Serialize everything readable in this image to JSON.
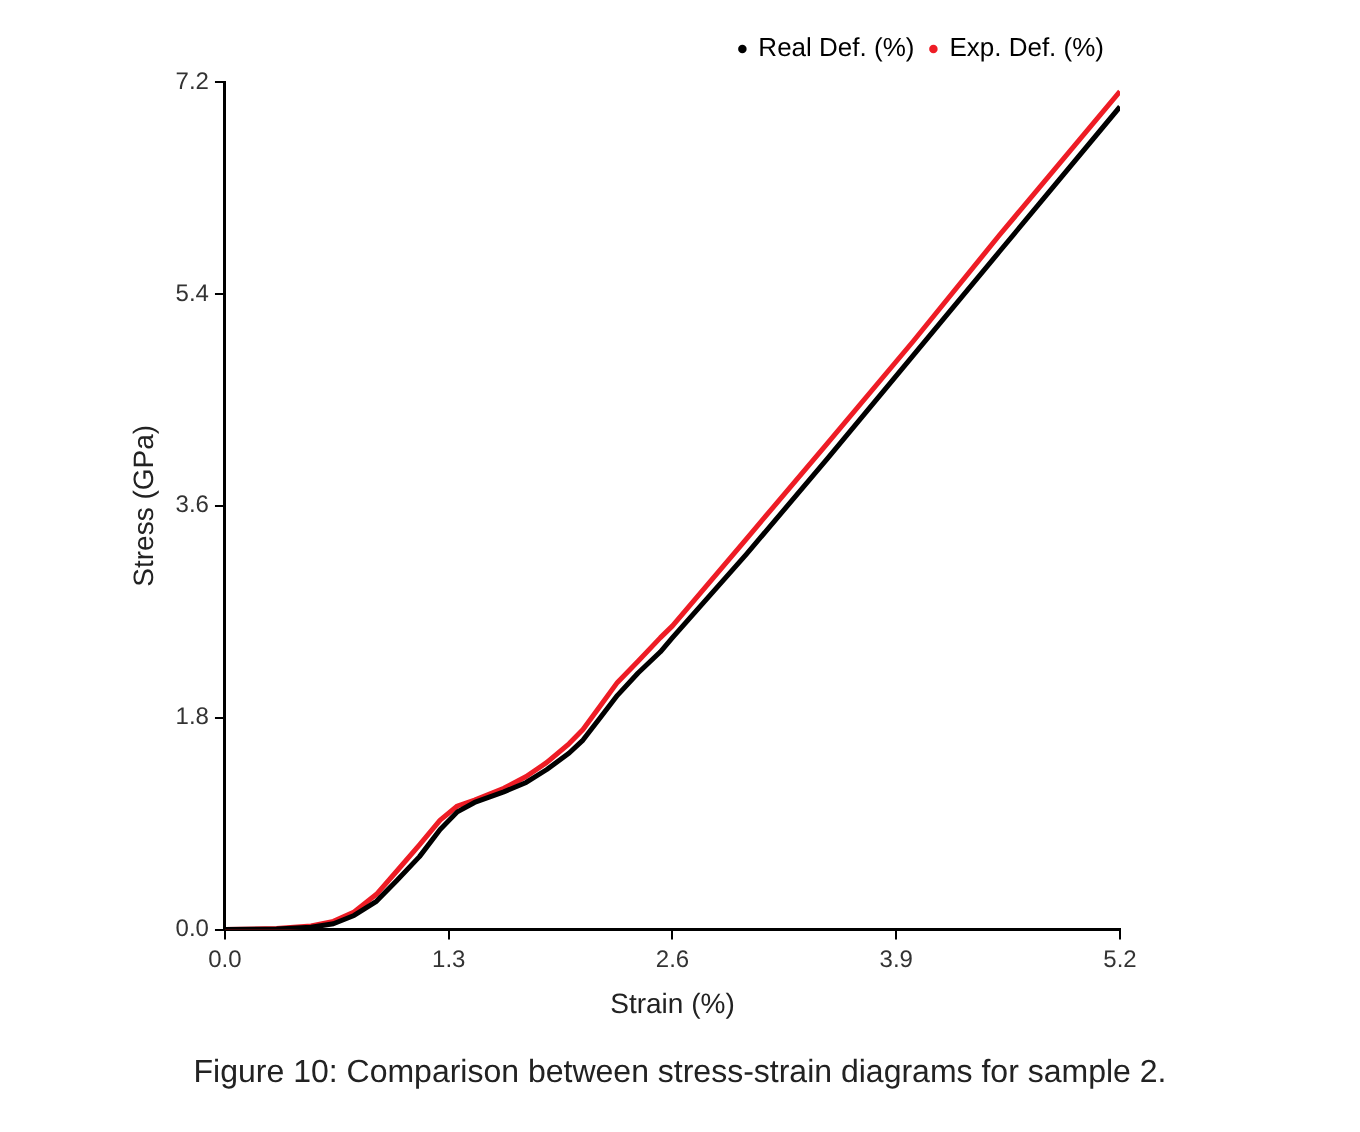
{
  "chart_data": {
    "type": "line",
    "title": "Figure 10: Comparison between stress-strain diagrams for sample 2.",
    "xlabel": "Strain (%)",
    "ylabel": "Stress (GPa)",
    "xlim": [
      0,
      5.2
    ],
    "xticks": [
      {
        "value": 0,
        "label": "0.0"
      },
      1.3,
      2.6,
      3.9,
      5.2
    ],
    "ylim": [
      0,
      7.2
    ],
    "yticks": [
      {
        "value": 0,
        "label": "0.0"
      },
      1.8,
      3.6,
      5.4,
      7.2
    ],
    "grid": false,
    "legend": "top right",
    "line_style": "solid",
    "series": [
      {
        "name": "Real Def. (%)",
        "color": "#000000",
        "x": [
          0,
          0.3,
          0.5,
          0.63,
          0.75,
          0.88,
          1.0,
          1.13,
          1.25,
          1.35,
          1.45,
          1.62,
          1.75,
          1.87,
          2.0,
          2.08,
          2.18,
          2.28,
          2.4,
          2.53,
          2.6,
          3.03,
          3.5,
          4.0,
          4.5,
          5.2
        ],
        "values": [
          0,
          0.005,
          0.02,
          0.05,
          0.12,
          0.24,
          0.42,
          0.62,
          0.85,
          1.0,
          1.08,
          1.17,
          1.25,
          1.36,
          1.5,
          1.61,
          1.8,
          1.99,
          2.18,
          2.36,
          2.48,
          3.19,
          4.0,
          4.88,
          5.76,
          6.99
        ]
      },
      {
        "name": "Exp. Def. (%)",
        "color": "#ee1c25",
        "x": [
          0,
          0.3,
          0.5,
          0.63,
          0.75,
          0.88,
          1.0,
          1.13,
          1.25,
          1.35,
          1.45,
          1.62,
          1.75,
          1.87,
          2.0,
          2.08,
          2.18,
          2.28,
          2.4,
          2.53,
          2.6,
          3.03,
          3.5,
          4.0,
          4.5,
          5.2
        ],
        "values": [
          0,
          0.01,
          0.03,
          0.07,
          0.15,
          0.3,
          0.5,
          0.72,
          0.93,
          1.05,
          1.1,
          1.2,
          1.3,
          1.42,
          1.58,
          1.7,
          1.9,
          2.1,
          2.28,
          2.48,
          2.58,
          3.32,
          4.13,
          5.0,
          5.9,
          7.12
        ]
      }
    ]
  }
}
